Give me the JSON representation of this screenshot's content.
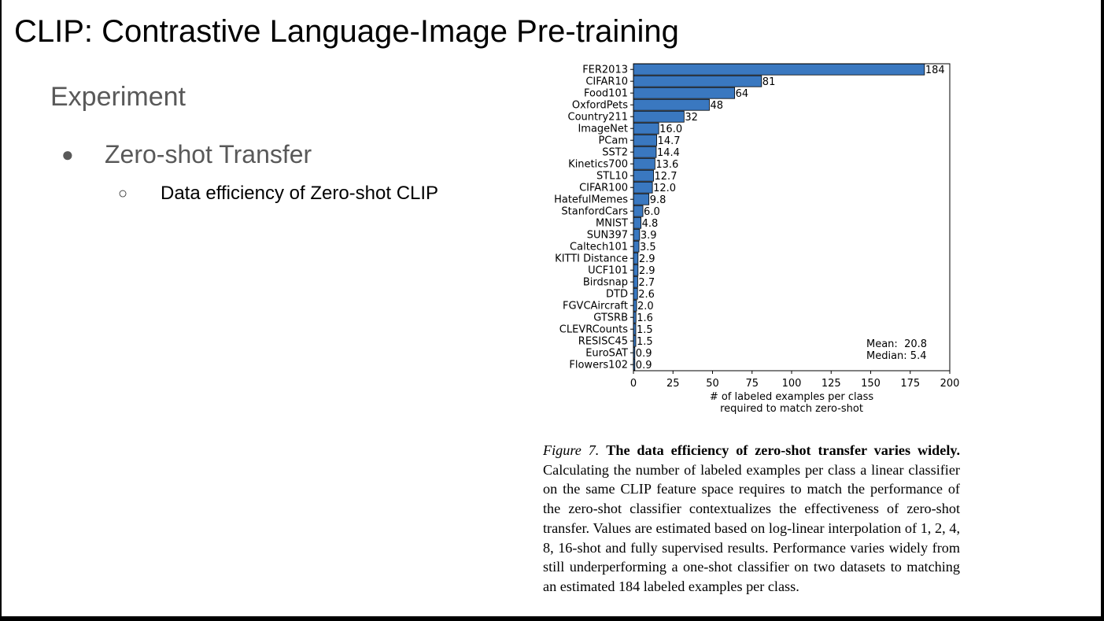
{
  "slide": {
    "title": "CLIP: Contrastive Language-Image Pre-training",
    "subtitle": "Experiment",
    "bullet_level1": "Zero-shot Transfer",
    "bullet_level2": "Data efficiency of Zero-shot CLIP",
    "bullet_level1_marker": "●",
    "bullet_level2_marker": "○"
  },
  "caption": {
    "figure_label": "Figure 7.",
    "bold_text": "The data efficiency of zero-shot transfer varies widely.",
    "body_text": "Calculating the number of labeled examples per class a linear classifier on the same CLIP feature space requires to match the performance of the zero-shot classifier contextualizes the effectiveness of zero-shot transfer. Values are estimated based on log-linear interpolation of 1, 2, 4, 8, 16-shot and fully supervised results. Performance varies widely from still underperforming a one-shot classifier on two datasets to matching an estimated 184 labeled examples per class."
  },
  "chart_data": {
    "type": "bar",
    "orientation": "horizontal",
    "categories": [
      "FER2013",
      "CIFAR10",
      "Food101",
      "OxfordPets",
      "Country211",
      "ImageNet",
      "PCam",
      "SST2",
      "Kinetics700",
      "STL10",
      "CIFAR100",
      "HatefulMemes",
      "StanfordCars",
      "MNIST",
      "SUN397",
      "Caltech101",
      "KITTI Distance",
      "UCF101",
      "Birdsnap",
      "DTD",
      "FGVCAircraft",
      "GTSRB",
      "CLEVRCounts",
      "RESISC45",
      "EuroSAT",
      "Flowers102"
    ],
    "values": [
      184,
      81,
      64,
      48,
      32,
      16.0,
      14.7,
      14.4,
      13.6,
      12.7,
      12.0,
      9.8,
      6.0,
      4.8,
      3.9,
      3.5,
      2.9,
      2.9,
      2.7,
      2.6,
      2.0,
      1.6,
      1.5,
      1.5,
      0.9,
      0.9
    ],
    "value_labels": [
      "184",
      "81",
      "64",
      "48",
      "32",
      "16.0",
      "14.7",
      "14.4",
      "13.6",
      "12.7",
      "12.0",
      "9.8",
      "6.0",
      "4.8",
      "3.9",
      "3.5",
      "2.9",
      "2.9",
      "2.7",
      "2.6",
      "2.0",
      "1.6",
      "1.5",
      "1.5",
      "0.9",
      "0.9"
    ],
    "xlabel": "# of labeled examples per class\nrequired to match zero-shot",
    "xlim": [
      0,
      200
    ],
    "xticks": [
      0,
      25,
      50,
      75,
      100,
      125,
      150,
      175,
      200
    ],
    "stats": [
      "Mean:  20.8",
      "Median: 5.4"
    ],
    "bar_color": "#3a78c0",
    "grid": false
  }
}
